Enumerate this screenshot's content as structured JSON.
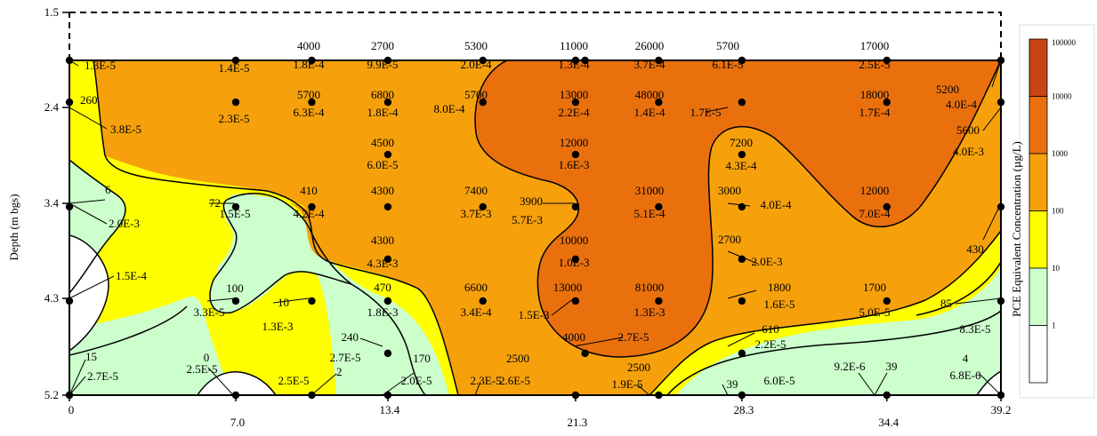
{
  "chart_data": {
    "type": "contour",
    "xlabel": "",
    "ylabel": "Depth (m bgs)",
    "x_ticks": [
      "0",
      "7.0",
      "13.4",
      "21.3",
      "28.3",
      "34.4",
      "39.2"
    ],
    "y_ticks": [
      "1.5",
      "2.4",
      "3.4",
      "4.3",
      "5.2"
    ],
    "xlim": [
      0,
      39.2
    ],
    "ylim": [
      5.2,
      1.5
    ],
    "legend": {
      "title": "PCE Equivalent Concentration (µg/L)",
      "position": "right",
      "levels": [
        "100000",
        "10000",
        "1000",
        "100",
        "10",
        "1"
      ],
      "colors": [
        "#c84414",
        "#ea700e",
        "#f6a10c",
        "#ffff00",
        "#ccffcc",
        "#ffffff"
      ]
    },
    "bands": [
      {
        "range": "1000-10000",
        "color": "#ea700e"
      },
      {
        "range": "100-1000",
        "color": "#f6a10c"
      },
      {
        "range": "10-100",
        "color": "#ffff00"
      },
      {
        "range": "1-10",
        "color": "#ccffcc"
      },
      {
        "range": "<1",
        "color": "#ffffff"
      }
    ],
    "points": [
      {
        "x": 0,
        "y": 2.0
      },
      {
        "x": 0,
        "y": 2.4
      },
      {
        "x": 0,
        "y": 3.4
      },
      {
        "x": 0,
        "y": 4.3
      },
      {
        "x": 0,
        "y": 5.2
      },
      {
        "x": 7.0,
        "y": 2.0
      },
      {
        "x": 7.0,
        "y": 2.4
      },
      {
        "x": 7.0,
        "y": 3.4
      },
      {
        "x": 7.0,
        "y": 4.3
      },
      {
        "x": 7.0,
        "y": 5.2
      },
      {
        "x": 10.2,
        "y": 2.0
      },
      {
        "x": 10.2,
        "y": 2.4
      },
      {
        "x": 10.2,
        "y": 3.4
      },
      {
        "x": 10.2,
        "y": 4.3
      },
      {
        "x": 10.2,
        "y": 5.2
      },
      {
        "x": 13.4,
        "y": 2.0
      },
      {
        "x": 13.4,
        "y": 2.4
      },
      {
        "x": 13.4,
        "y": 2.9
      },
      {
        "x": 13.4,
        "y": 3.4
      },
      {
        "x": 13.4,
        "y": 3.9
      },
      {
        "x": 13.4,
        "y": 4.3
      },
      {
        "x": 13.4,
        "y": 4.8
      },
      {
        "x": 13.4,
        "y": 5.2
      },
      {
        "x": 17.4,
        "y": 2.0
      },
      {
        "x": 17.4,
        "y": 2.4
      },
      {
        "x": 17.4,
        "y": 3.4
      },
      {
        "x": 17.4,
        "y": 4.3
      },
      {
        "x": 21.3,
        "y": 2.0
      },
      {
        "x": 21.3,
        "y": 2.4
      },
      {
        "x": 21.3,
        "y": 2.9
      },
      {
        "x": 21.3,
        "y": 3.4
      },
      {
        "x": 21.3,
        "y": 3.9
      },
      {
        "x": 21.3,
        "y": 4.3
      },
      {
        "x": 21.3,
        "y": 5.2
      },
      {
        "x": 21.7,
        "y": 2.0
      },
      {
        "x": 21.7,
        "y": 4.8
      },
      {
        "x": 24.8,
        "y": 2.0
      },
      {
        "x": 24.8,
        "y": 2.4
      },
      {
        "x": 24.8,
        "y": 3.4
      },
      {
        "x": 24.8,
        "y": 4.3
      },
      {
        "x": 24.8,
        "y": 5.2
      },
      {
        "x": 28.3,
        "y": 2.0
      },
      {
        "x": 28.3,
        "y": 2.4
      },
      {
        "x": 28.3,
        "y": 2.9
      },
      {
        "x": 28.3,
        "y": 3.4
      },
      {
        "x": 28.3,
        "y": 3.9
      },
      {
        "x": 28.3,
        "y": 4.3
      },
      {
        "x": 28.3,
        "y": 4.8
      },
      {
        "x": 28.3,
        "y": 5.2
      },
      {
        "x": 34.4,
        "y": 2.0
      },
      {
        "x": 34.4,
        "y": 2.4
      },
      {
        "x": 34.4,
        "y": 3.4
      },
      {
        "x": 34.4,
        "y": 4.3
      },
      {
        "x": 34.4,
        "y": 5.2
      },
      {
        "x": 39.2,
        "y": 2.0
      },
      {
        "x": 39.2,
        "y": 2.4
      },
      {
        "x": 39.2,
        "y": 3.4
      },
      {
        "x": 39.2,
        "y": 4.3
      },
      {
        "x": 39.2,
        "y": 5.2
      }
    ],
    "annotations": [
      "1.3E-5",
      "260",
      "3.8E-5",
      "6",
      "2.0E-3",
      "1.5E-4",
      "15",
      "2.7E-5",
      "1.4E-5",
      "2.3E-5",
      "72",
      "1.5E-5",
      "100",
      "3.3E-5",
      "0",
      "2.5E-5",
      "4000",
      "1.8E-4",
      "5700",
      "6.3E-4",
      "410",
      "4.2E-4",
      "10",
      "1.3E-3",
      "2.5E-5",
      "2",
      "2700",
      "9.9E-5",
      "6800",
      "1.8E-4",
      "4500",
      "6.0E-5",
      "4300",
      "4300",
      "4.3E-3",
      "470",
      "1.8E-3",
      "240",
      "2.7E-5",
      "170",
      "2.0E-5",
      "5300",
      "2.0E-4",
      "5700",
      "8.0E-4",
      "7400",
      "3.7E-3",
      "6600",
      "3.4E-4",
      "2.3E-5",
      "11000",
      "1.3E-4",
      "13000",
      "2.2E-4",
      "12000",
      "1.6E-3",
      "3900",
      "5.7E-3",
      "10000",
      "1.0E-3",
      "13000",
      "1.5E-3",
      "4000",
      "2.7E-5",
      "2500",
      "2.6E-5",
      "26000",
      "3.7E-4",
      "48000",
      "1.4E-4",
      "31000",
      "5.1E-4",
      "81000",
      "1.3E-3",
      "2500",
      "1.9E-5",
      "5700",
      "6.1E-5",
      "1.7E-5",
      "7200",
      "4.3E-4",
      "3000",
      "4.0E-4",
      "2700",
      "2.0E-3",
      "1800",
      "1.6E-5",
      "610",
      "2.2E-5",
      "39",
      "6.0E-5",
      "17000",
      "2.5E-5",
      "18000",
      "1.7E-4",
      "12000",
      "7.0E-4",
      "1700",
      "5.0E-5",
      "9.2E-6",
      "39",
      "5200",
      "4.0E-4",
      "5600",
      "4.0E-3",
      "430",
      "85",
      "8.3E-5",
      "4",
      "6.8E-6"
    ]
  }
}
